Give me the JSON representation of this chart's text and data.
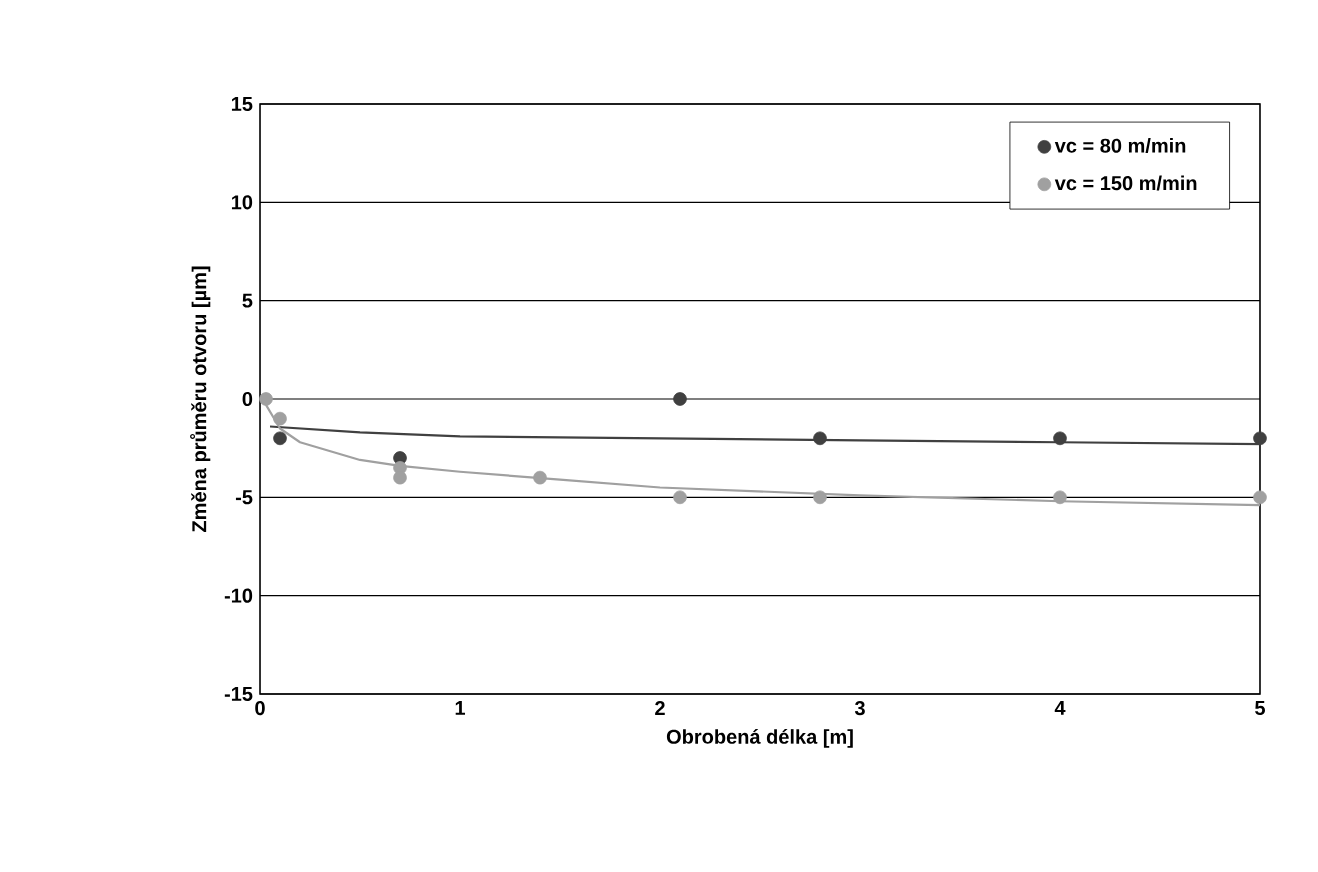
{
  "chart_data": {
    "type": "scatter",
    "xlabel": "Obrobená délka [m]",
    "ylabel": "Změna průměru otvoru [µm]",
    "xlim": [
      0,
      5
    ],
    "ylim": [
      -15,
      15
    ],
    "xticks": [
      0,
      1,
      2,
      3,
      4,
      5
    ],
    "yticks": [
      -15,
      -10,
      -5,
      0,
      5,
      10,
      15
    ],
    "grid": "y",
    "legend": "top right",
    "series": [
      {
        "name": "vc = 80 m/min",
        "marker": "circle",
        "color": "#404040",
        "x": [
          0.1,
          0.7,
          2.1,
          2.8,
          4,
          5
        ],
        "values": [
          -2,
          -3,
          0,
          -2,
          -2,
          -2
        ]
      },
      {
        "name": "vc = 150 m/min",
        "marker": "circle",
        "color": "#a0a0a0",
        "x": [
          0.03,
          0.1,
          0.7,
          0.7,
          1.4,
          2.1,
          2.8,
          4,
          5
        ],
        "values": [
          0,
          -1,
          -3.5,
          -4,
          -4,
          -5,
          -5,
          -5,
          -5
        ]
      },
      {
        "type": "line",
        "marker": "none",
        "color": "#404040",
        "x": [
          0.05,
          0.5,
          1,
          2,
          3,
          4,
          5
        ],
        "values": [
          -1.4,
          -1.7,
          -1.9,
          -2,
          -2.1,
          -2.2,
          -2.3
        ]
      },
      {
        "type": "line",
        "marker": "none",
        "color": "#a0a0a0",
        "x": [
          0.03,
          0.1,
          0.2,
          0.5,
          0.7,
          1,
          1.5,
          2,
          3,
          4,
          5
        ],
        "values": [
          -0.3,
          -1.5,
          -2.2,
          -3.1,
          -3.4,
          -3.7,
          -4.1,
          -4.5,
          -4.9,
          -5.2,
          -5.4
        ]
      }
    ]
  }
}
